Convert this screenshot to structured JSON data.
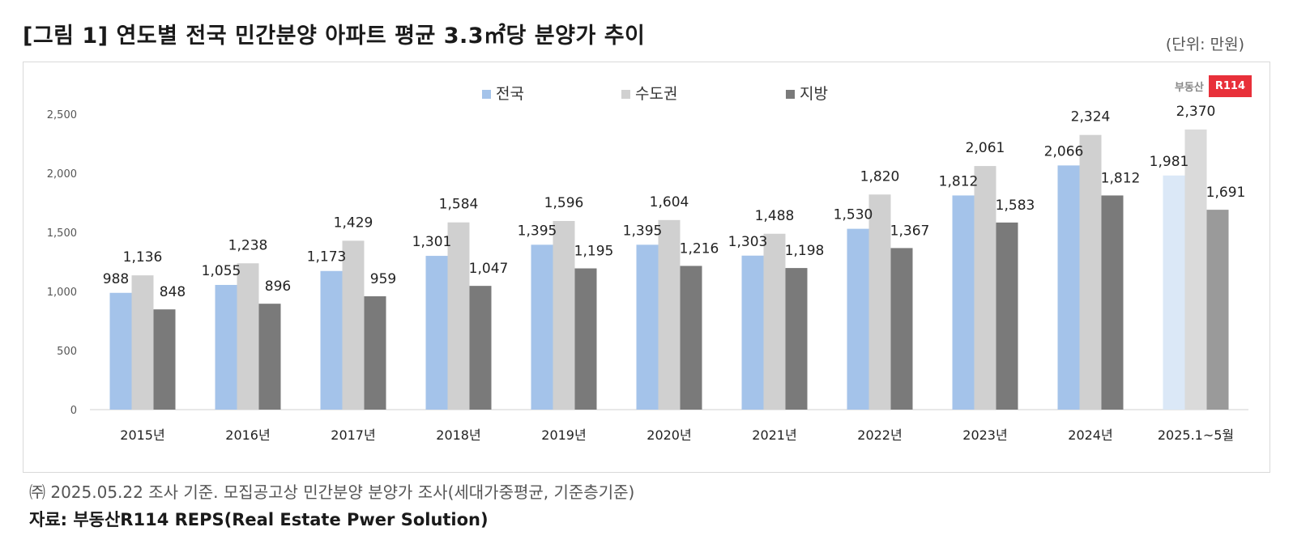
{
  "header": {
    "title": "[그림 1] 연도별 전국 민간분양 아파트 평균 3.3㎡당 분양가 추이",
    "unit": "(단위: 만원)"
  },
  "logo": {
    "text": "부동산",
    "badge": "R114"
  },
  "footer": {
    "note": "㈜ 2025.05.22 조사 기준. 모집공고상 민간분양 분양가 조사(세대가중평균, 기준층기준)",
    "source": "자료: 부동산R114 REPS(Real Estate Pwer Solution)"
  },
  "chart_data": {
    "type": "bar",
    "title": "[그림 1] 연도별 전국 민간분양 아파트 평균 3.3㎡당 분양가 추이",
    "xlabel": "",
    "ylabel": "",
    "ylim": [
      0,
      2500
    ],
    "yticks": [
      0,
      500,
      1000,
      1500,
      2000,
      2500
    ],
    "ytick_labels": [
      "0",
      "500",
      "1,000",
      "1,500",
      "2,000",
      "2,500"
    ],
    "legend_position": "top-center",
    "categories": [
      "2015년",
      "2016년",
      "2017년",
      "2018년",
      "2019년",
      "2020년",
      "2021년",
      "2022년",
      "2023년",
      "2024년",
      "2025.1~5월"
    ],
    "series": [
      {
        "name": "전국",
        "color": "#a4c3ea",
        "last_color": "#dbe8f7",
        "values": [
          988,
          1055,
          1173,
          1301,
          1395,
          1395,
          1303,
          1530,
          1812,
          2066,
          1981
        ],
        "labels": [
          "988",
          "1,055",
          "1,173",
          "1,301",
          "1,395",
          "1,395",
          "1,303",
          "1,530",
          "1,812",
          "2,066",
          "1,981"
        ]
      },
      {
        "name": "수도권",
        "color": "#d0d0d0",
        "last_color": "#dadada",
        "values": [
          1136,
          1238,
          1429,
          1584,
          1596,
          1604,
          1488,
          1820,
          2061,
          2324,
          2370
        ],
        "labels": [
          "1,136",
          "1,238",
          "1,429",
          "1,584",
          "1,596",
          "1,604",
          "1,488",
          "1,820",
          "2,061",
          "2,324",
          "2,370"
        ]
      },
      {
        "name": "지방",
        "color": "#7a7a7a",
        "last_color": "#9a9a9a",
        "values": [
          848,
          896,
          959,
          1047,
          1195,
          1216,
          1198,
          1367,
          1583,
          1812,
          1691
        ],
        "labels": [
          "848",
          "896",
          "959",
          "1,047",
          "1,195",
          "1,216",
          "1,198",
          "1,367",
          "1,583",
          "1,812",
          "1,691"
        ]
      }
    ]
  }
}
